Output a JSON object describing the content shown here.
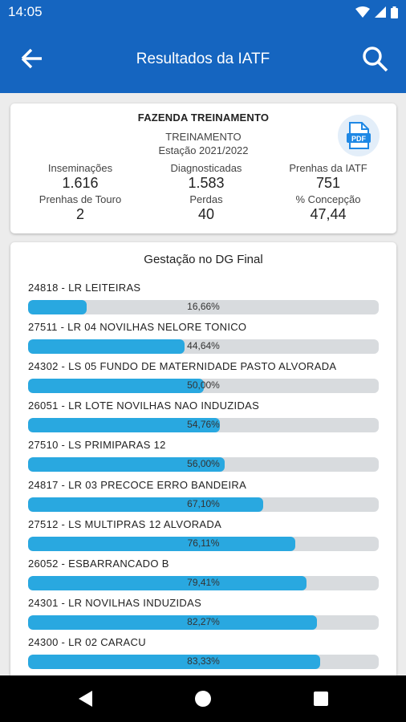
{
  "status_bar": {
    "time": "14:05"
  },
  "app_bar": {
    "title": "Resultados da IATF"
  },
  "summary": {
    "farm": "FAZENDA TREINAMENTO",
    "group": "TREINAMENTO",
    "season": "Estação 2021/2022",
    "stats": [
      {
        "label": "Inseminações",
        "value": "1.616"
      },
      {
        "label": "Diagnosticadas",
        "value": "1.583"
      },
      {
        "label": "Prenhas da IATF",
        "value": "751"
      },
      {
        "label": "Prenhas de Touro",
        "value": "2"
      },
      {
        "label": "Perdas",
        "value": "40"
      },
      {
        "label": "% Concepção",
        "value": "47,44"
      }
    ]
  },
  "list": {
    "heading": "Gestação no DG Final",
    "items": [
      {
        "name": "24818 - LR LEITEIRAS",
        "percent_label": "16,66%",
        "percent": 16.66
      },
      {
        "name": "27511 - LR 04 NOVILHAS NELORE TONICO",
        "percent_label": "44,64%",
        "percent": 44.64
      },
      {
        "name": "24302 - LS 05 FUNDO DE MATERNIDADE PASTO ALVORADA",
        "percent_label": "50,00%",
        "percent": 50.0
      },
      {
        "name": "26051 - LR LOTE NOVILHAS NAO INDUZIDAS",
        "percent_label": "54,76%",
        "percent": 54.76
      },
      {
        "name": "27510 - LS PRIMIPARAS 12",
        "percent_label": "56,00%",
        "percent": 56.0
      },
      {
        "name": "24817 - LR 03 PRECOCE ERRO BANDEIRA",
        "percent_label": "67,10%",
        "percent": 67.1
      },
      {
        "name": "27512 - LS MULTIPRAS 12 ALVORADA",
        "percent_label": "76,11%",
        "percent": 76.11
      },
      {
        "name": "26052 - ESBARRANCADO B",
        "percent_label": "79,41%",
        "percent": 79.41
      },
      {
        "name": "24301 - LR NOVILHAS INDUZIDAS",
        "percent_label": "82,27%",
        "percent": 82.27
      },
      {
        "name": "24300 - LR 02 CARACU",
        "percent_label": "83,33%",
        "percent": 83.33
      }
    ]
  },
  "colors": {
    "primary": "#1565c0",
    "bar_fill": "#29a8e0",
    "bar_track": "#d8dbde"
  }
}
